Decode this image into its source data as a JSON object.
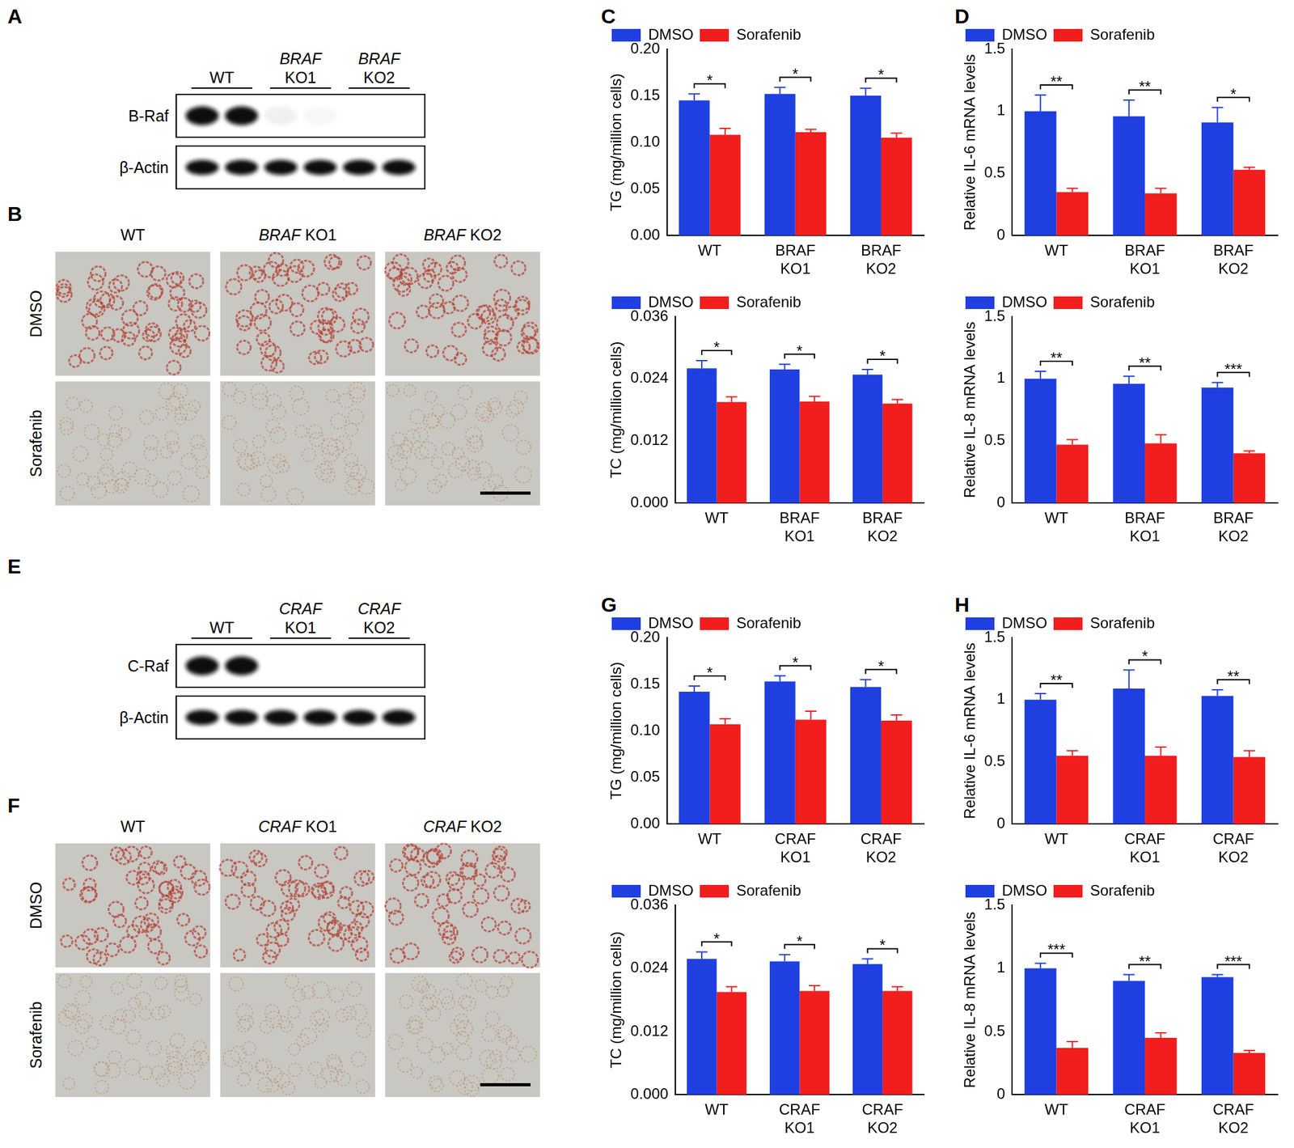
{
  "blots": [
    {
      "panel": "A",
      "groups": [
        "WT",
        "BRAF KO1",
        "BRAF KO2"
      ],
      "rows": [
        {
          "label": "B-Raf",
          "bands": [
            1,
            1,
            0.06,
            0.03,
            0,
            0
          ]
        },
        {
          "label": "β-Actin",
          "bands": [
            1,
            1,
            1,
            1,
            1,
            1
          ]
        }
      ]
    },
    {
      "panel": "E",
      "groups": [
        "WT",
        "CRAF KO1",
        "CRAF KO2"
      ],
      "rows": [
        {
          "label": "C-Raf",
          "bands": [
            1,
            1,
            0,
            0,
            0,
            0
          ]
        },
        {
          "label": "β-Actin",
          "bands": [
            1,
            1,
            1,
            1,
            1,
            1
          ]
        }
      ]
    }
  ],
  "images": [
    {
      "panel": "B",
      "columns": [
        "WT",
        "BRAF KO1",
        "BRAF KO2"
      ],
      "rows": [
        "DMSO",
        "Sorafenib"
      ]
    },
    {
      "panel": "F",
      "columns": [
        "WT",
        "CRAF KO1",
        "CRAF KO2"
      ],
      "rows": [
        "DMSO",
        "Sorafenib"
      ]
    }
  ],
  "chart_data": [
    {
      "panel": "C",
      "type": "bar",
      "y_label": "TG (mg/million cells)",
      "categories": [
        "WT",
        "BRAF KO1",
        "BRAF KO2"
      ],
      "series": [
        {
          "name": "DMSO",
          "color": "#1f3fe0",
          "values": [
            0.145,
            0.152,
            0.15
          ],
          "errors": [
            0.007,
            0.007,
            0.008
          ]
        },
        {
          "name": "Sorafenib",
          "color": "#f21d1d",
          "values": [
            0.108,
            0.111,
            0.105
          ],
          "errors": [
            0.007,
            0.003,
            0.005
          ]
        }
      ],
      "significance": [
        "*",
        "*",
        "*"
      ],
      "ylim": [
        0,
        0.2
      ],
      "yticks": [
        {
          "value": 0,
          "label": "0.00"
        },
        {
          "value": 0.05,
          "label": "0.05"
        },
        {
          "value": 0.1,
          "label": "0.10"
        },
        {
          "value": 0.15,
          "label": "0.15"
        },
        {
          "value": 0.2,
          "label": "0.20"
        }
      ],
      "grid": false,
      "legend": "top-left"
    },
    {
      "type": "bar",
      "y_label": "TC (mg/million cells)",
      "categories": [
        "WT",
        "BRAF KO1",
        "BRAF KO2"
      ],
      "series": [
        {
          "name": "DMSO",
          "color": "#1f3fe0",
          "values": [
            0.026,
            0.0258,
            0.0248
          ],
          "errors": [
            0.0015,
            0.001,
            0.001
          ]
        },
        {
          "name": "Sorafenib",
          "color": "#f21d1d",
          "values": [
            0.0195,
            0.0196,
            0.0192
          ],
          "errors": [
            0.001,
            0.001,
            0.0008
          ]
        }
      ],
      "significance": [
        "*",
        "*",
        "*"
      ],
      "ylim": [
        0,
        0.036
      ],
      "yticks": [
        {
          "value": 0,
          "label": "0.000"
        },
        {
          "value": 0.012,
          "label": "0.012"
        },
        {
          "value": 0.024,
          "label": "0.024"
        },
        {
          "value": 0.036,
          "label": "0.036"
        }
      ],
      "grid": false,
      "legend": "top-left"
    },
    {
      "panel": "D",
      "type": "bar",
      "y_label": "Relative IL-6 mRNA levels",
      "categories": [
        "WT",
        "BRAF KO1",
        "BRAF KO2"
      ],
      "series": [
        {
          "name": "DMSO",
          "color": "#1f3fe0",
          "values": [
            1.0,
            0.96,
            0.91
          ],
          "errors": [
            0.13,
            0.13,
            0.12
          ]
        },
        {
          "name": "Sorafenib",
          "color": "#f21d1d",
          "values": [
            0.35,
            0.34,
            0.53
          ],
          "errors": [
            0.03,
            0.04,
            0.02
          ]
        }
      ],
      "significance": [
        "**",
        "**",
        "*"
      ],
      "ylim": [
        0,
        1.5
      ],
      "yticks": [
        0,
        0.5,
        1,
        1.5
      ],
      "grid": false,
      "legend": "top-left"
    },
    {
      "type": "bar",
      "y_label": "Relative IL-8 mRNA levels",
      "categories": [
        "WT",
        "BRAF KO1",
        "BRAF KO2"
      ],
      "series": [
        {
          "name": "DMSO",
          "color": "#1f3fe0",
          "values": [
            1.0,
            0.96,
            0.93
          ],
          "errors": [
            0.06,
            0.06,
            0.04
          ]
        },
        {
          "name": "Sorafenib",
          "color": "#f21d1d",
          "values": [
            0.47,
            0.48,
            0.4
          ],
          "errors": [
            0.04,
            0.07,
            0.02
          ]
        }
      ],
      "significance": [
        "**",
        "**",
        "***"
      ],
      "ylim": [
        0,
        1.5
      ],
      "yticks": [
        0,
        0.5,
        1,
        1.5
      ],
      "grid": false,
      "legend": "top-left"
    },
    {
      "panel": "G",
      "type": "bar",
      "y_label": "TG (mg/million cells)",
      "categories": [
        "WT",
        "CRAF KO1",
        "CRAF KO2"
      ],
      "series": [
        {
          "name": "DMSO",
          "color": "#1f3fe0",
          "values": [
            0.142,
            0.153,
            0.147
          ],
          "errors": [
            0.006,
            0.006,
            0.008
          ]
        },
        {
          "name": "Sorafenib",
          "color": "#f21d1d",
          "values": [
            0.107,
            0.112,
            0.111
          ],
          "errors": [
            0.006,
            0.009,
            0.006
          ]
        }
      ],
      "significance": [
        "*",
        "*",
        "*"
      ],
      "ylim": [
        0,
        0.2
      ],
      "yticks": [
        {
          "value": 0,
          "label": "0.00"
        },
        {
          "value": 0.05,
          "label": "0.05"
        },
        {
          "value": 0.1,
          "label": "0.10"
        },
        {
          "value": 0.15,
          "label": "0.15"
        },
        {
          "value": 0.2,
          "label": "0.20"
        }
      ],
      "grid": false,
      "legend": "top-left"
    },
    {
      "type": "bar",
      "y_label": "TC (mg/million cells)",
      "categories": [
        "WT",
        "CRAF KO1",
        "CRAF KO2"
      ],
      "series": [
        {
          "name": "DMSO",
          "color": "#1f3fe0",
          "values": [
            0.0258,
            0.0253,
            0.0248
          ],
          "errors": [
            0.0013,
            0.0013,
            0.001
          ]
        },
        {
          "name": "Sorafenib",
          "color": "#f21d1d",
          "values": [
            0.0195,
            0.0197,
            0.0197
          ],
          "errors": [
            0.001,
            0.001,
            0.0008
          ]
        }
      ],
      "significance": [
        "*",
        "*",
        "*"
      ],
      "ylim": [
        0,
        0.036
      ],
      "yticks": [
        {
          "value": 0,
          "label": "0.000"
        },
        {
          "value": 0.012,
          "label": "0.012"
        },
        {
          "value": 0.024,
          "label": "0.024"
        },
        {
          "value": 0.036,
          "label": "0.036"
        }
      ],
      "grid": false,
      "legend": "top-left"
    },
    {
      "panel": "H",
      "type": "bar",
      "y_label": "Relative IL-6 mRNA levels",
      "categories": [
        "WT",
        "CRAF KO1",
        "CRAF KO2"
      ],
      "series": [
        {
          "name": "DMSO",
          "color": "#1f3fe0",
          "values": [
            1.0,
            1.09,
            1.03
          ],
          "errors": [
            0.05,
            0.15,
            0.05
          ]
        },
        {
          "name": "Sorafenib",
          "color": "#f21d1d",
          "values": [
            0.55,
            0.55,
            0.54
          ],
          "errors": [
            0.04,
            0.07,
            0.05
          ]
        }
      ],
      "significance": [
        "**",
        "*",
        "**"
      ],
      "ylim": [
        0,
        1.5
      ],
      "yticks": [
        0,
        0.5,
        1,
        1.5
      ],
      "grid": false,
      "legend": "top-left"
    },
    {
      "type": "bar",
      "y_label": "Relative IL-8 mRNA levels",
      "categories": [
        "WT",
        "CRAF KO1",
        "CRAF KO2"
      ],
      "series": [
        {
          "name": "DMSO",
          "color": "#1f3fe0",
          "values": [
            1.0,
            0.9,
            0.93
          ],
          "errors": [
            0.04,
            0.05,
            0.02
          ]
        },
        {
          "name": "Sorafenib",
          "color": "#f21d1d",
          "values": [
            0.37,
            0.45,
            0.33
          ],
          "errors": [
            0.05,
            0.04,
            0.02
          ]
        }
      ],
      "significance": [
        "***",
        "**",
        "***"
      ],
      "ylim": [
        0,
        1.5
      ],
      "yticks": [
        0,
        0.5,
        1,
        1.5
      ],
      "grid": false,
      "legend": "top-left"
    }
  ]
}
